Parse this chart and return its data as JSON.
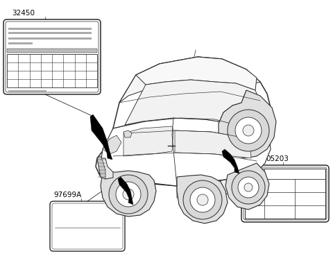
{
  "bg_color": "#ffffff",
  "line_color": "#2a2a2a",
  "label_32450": "32450",
  "label_97699A": "97699A",
  "label_05203": "05203",
  "lw_main": 0.9,
  "lw_thin": 0.5,
  "lw_thick": 1.1,
  "car_color": "#ffffff",
  "car_edge": "#2a2a2a",
  "arrow_color": "#000000"
}
